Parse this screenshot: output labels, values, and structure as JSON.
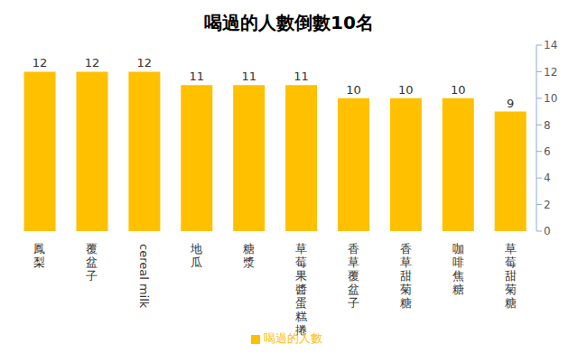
{
  "chart_data": {
    "type": "bar",
    "title": "喝過的人數倒數10名",
    "categories": [
      "鳳梨",
      "覆盆子",
      "cereal milk",
      "地瓜",
      "糖漿",
      "草莓果醬蛋糕捲",
      "香草覆盆子",
      "香草甜菊糖",
      "咖啡焦糖",
      "草莓甜菊糖"
    ],
    "series": [
      {
        "name": "喝過的人數",
        "color": "#ffc000",
        "values": [
          12,
          12,
          12,
          11,
          11,
          11,
          10,
          10,
          10,
          9
        ]
      }
    ],
    "ylim": [
      0,
      14
    ],
    "yticks": [
      0,
      2,
      4,
      6,
      8,
      10,
      12,
      14
    ],
    "data_labels": true,
    "legend": "bottom",
    "grid": false
  }
}
